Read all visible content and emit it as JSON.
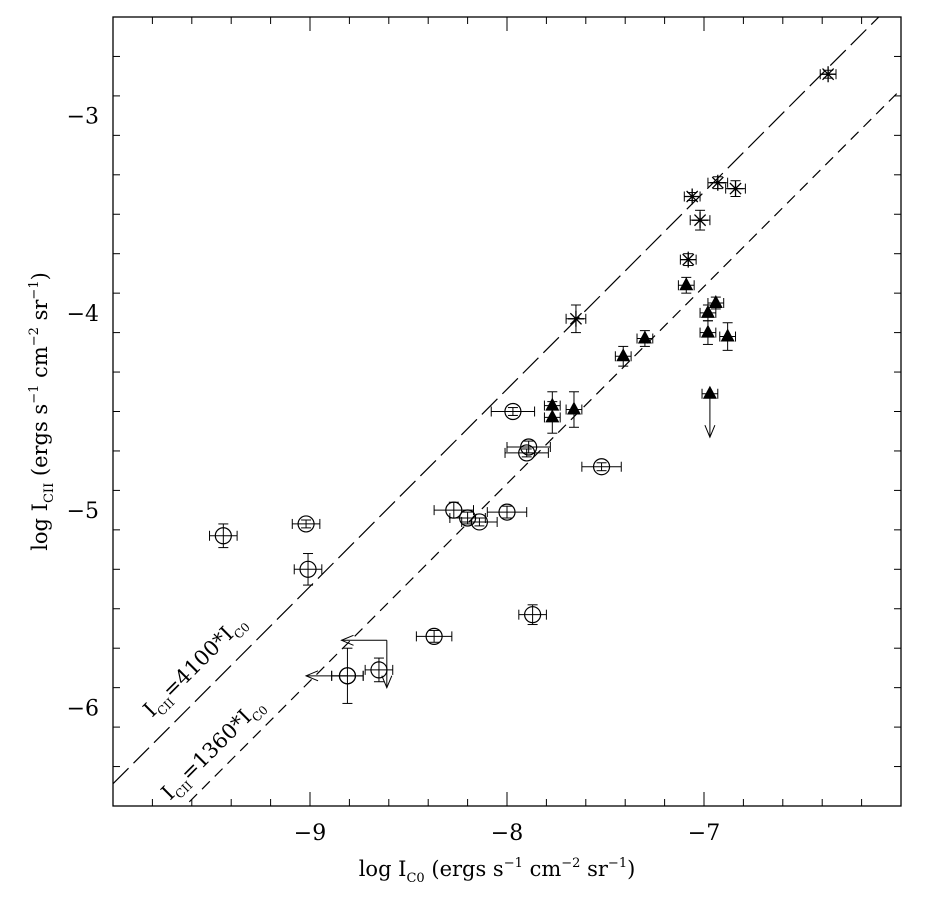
{
  "chart_data": {
    "type": "scatter",
    "xlim": [
      -10.0,
      -6.0
    ],
    "ylim": [
      -6.5,
      -2.5
    ],
    "log_scale": true,
    "x_ticks": [
      -9,
      -8,
      -7
    ],
    "y_ticks": [
      -6,
      -5,
      -4,
      -3
    ],
    "x_tick_labels": [
      "−9",
      "−8",
      "−7"
    ],
    "y_tick_labels": [
      "−6",
      "−5",
      "−4",
      "−3"
    ],
    "xlabel": {
      "prefix": "log I",
      "subscript": "C0",
      "unit_start": "(ergs s",
      "exp1": "−1",
      "unit_mid": " cm",
      "exp2": "−2",
      "unit_mid2": " sr",
      "exp3": "−1",
      "unit_end": ")"
    },
    "ylabel": {
      "prefix": "log I",
      "subscript": "CII",
      "unit_start": "(ergs s",
      "exp1": "−1",
      "unit_mid": " cm",
      "exp2": "−2",
      "unit_mid2": " sr",
      "exp3": "−1",
      "unit_end": ")"
    },
    "grid": false,
    "lines": [
      {
        "style": "long-dash",
        "label_main": "I",
        "label_sub": "CII",
        "label_rest": "=4100*I",
        "label_sub2": "C0",
        "slope": 1,
        "intercept": 3.6128
      },
      {
        "style": "short-dash",
        "label_main": "I",
        "label_sub": "CII",
        "label_rest": "=1360*I",
        "label_sub2": "C0",
        "slope": 1,
        "intercept": 3.1335
      }
    ],
    "series": [
      {
        "marker": "asterisk",
        "points": [
          {
            "x": -6.37,
            "y": -2.79,
            "xerr": 0.04,
            "yerr": 0.02
          },
          {
            "x": -6.93,
            "y": -3.34,
            "xerr": 0.05,
            "yerr": 0.03
          },
          {
            "x": -6.84,
            "y": -3.37,
            "xerr": 0.05,
            "yerr": 0.04
          },
          {
            "x": -7.06,
            "y": -3.41,
            "xerr": 0.04,
            "yerr": 0.02
          },
          {
            "x": -7.02,
            "y": -3.53,
            "xerr": 0.05,
            "yerr": 0.05
          },
          {
            "x": -7.08,
            "y": -3.73,
            "xerr": 0.04,
            "yerr": 0.03
          },
          {
            "x": -7.65,
            "y": -4.03,
            "xerr": 0.05,
            "yerr": 0.07
          }
        ]
      },
      {
        "marker": "filled-triangle",
        "points": [
          {
            "x": -7.09,
            "y": -3.86,
            "xerr": 0.04,
            "yerr": 0.04
          },
          {
            "x": -6.94,
            "y": -3.95,
            "xerr": 0.04,
            "yerr": 0.03
          },
          {
            "x": -6.98,
            "y": -4.0,
            "xerr": 0.04,
            "yerr": 0.04
          },
          {
            "x": -6.98,
            "y": -4.1,
            "xerr": 0.04,
            "yerr": 0.06
          },
          {
            "x": -6.88,
            "y": -4.12,
            "xerr": 0.04,
            "yerr": 0.07
          },
          {
            "x": -7.3,
            "y": -4.13,
            "xerr": 0.04,
            "yerr": 0.04
          },
          {
            "x": -7.41,
            "y": -4.22,
            "xerr": 0.04,
            "yerr": 0.05
          },
          {
            "x": -7.77,
            "y": -4.47,
            "xerr": 0.04,
            "yerr": 0.07
          },
          {
            "x": -7.66,
            "y": -4.49,
            "xerr": 0.04,
            "yerr": 0.09
          },
          {
            "x": -7.77,
            "y": -4.53,
            "xerr": 0.04,
            "yerr": 0.08
          },
          {
            "x": -6.97,
            "y": -4.41,
            "xerr": 0.04,
            "yerr": 0.0,
            "upper_limit_y": true,
            "arrow_to": -4.63
          }
        ]
      },
      {
        "marker": "open-circle",
        "points": [
          {
            "x": -7.97,
            "y": -4.5,
            "xerr": 0.11,
            "yerr": 0.02
          },
          {
            "x": -7.89,
            "y": -4.68,
            "xerr": 0.11,
            "yerr": 0.03
          },
          {
            "x": -7.9,
            "y": -4.71,
            "xerr": 0.11,
            "yerr": 0.02
          },
          {
            "x": -7.52,
            "y": -4.78,
            "xerr": 0.1,
            "yerr": 0.02
          },
          {
            "x": -8.0,
            "y": -5.01,
            "xerr": 0.1,
            "yerr": 0.03
          },
          {
            "x": -8.27,
            "y": -5.0,
            "xerr": 0.1,
            "yerr": 0.04
          },
          {
            "x": -8.2,
            "y": -5.04,
            "xerr": 0.09,
            "yerr": 0.03
          },
          {
            "x": -8.14,
            "y": -5.06,
            "xerr": 0.09,
            "yerr": 0.02
          },
          {
            "x": -9.02,
            "y": -5.07,
            "xerr": 0.07,
            "yerr": 0.02
          },
          {
            "x": -9.44,
            "y": -5.13,
            "xerr": 0.07,
            "yerr": 0.06
          },
          {
            "x": -9.01,
            "y": -5.3,
            "xerr": 0.07,
            "yerr": 0.08
          },
          {
            "x": -7.87,
            "y": -5.53,
            "xerr": 0.07,
            "yerr": 0.05
          },
          {
            "x": -8.37,
            "y": -5.64,
            "xerr": 0.09,
            "yerr": 0.03
          },
          {
            "x": -8.65,
            "y": -5.81,
            "xerr": 0.07,
            "yerr": 0.06
          },
          {
            "x": -8.81,
            "y": -5.84,
            "xerr": 0.08,
            "yerr": 0.14
          },
          {
            "x": -8.81,
            "y": -5.84,
            "xerr": 0.08,
            "yerr": 0.0
          },
          {
            "x": -8.61,
            "y": -5.66,
            "xerr": 0.0,
            "yerr": 0.0,
            "upper_limit_x": true,
            "arrow_to_x": -8.84
          },
          {
            "x": -8.61,
            "y": -5.66,
            "xerr": 0.0,
            "yerr": 0.0,
            "upper_limit_y": true,
            "arrow_to": -5.9
          },
          {
            "x": -8.81,
            "y": -5.84,
            "xerr": 0.0,
            "yerr": 0.0,
            "upper_limit_x": true,
            "arrow_to_x": -9.02
          }
        ]
      }
    ]
  }
}
